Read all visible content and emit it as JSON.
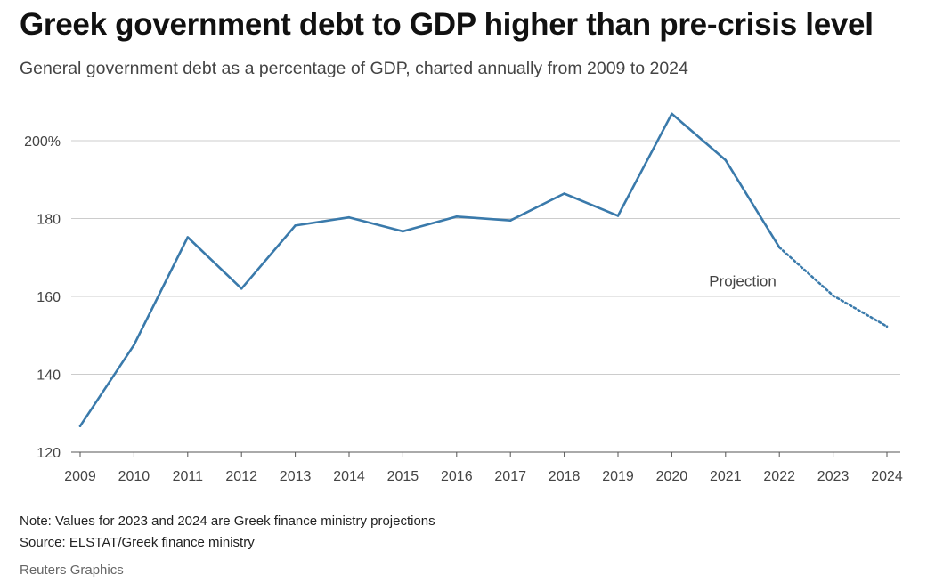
{
  "header": {
    "title": "Greek government debt to GDP higher than pre-crisis level",
    "subtitle": "General government debt as a percentage of GDP, charted annually from 2009 to 2024"
  },
  "footer": {
    "note": "Note: Values for 2023 and 2024 are Greek finance ministry projections",
    "source": "Source: ELSTAT/Greek finance ministry",
    "credit": "Reuters Graphics"
  },
  "chart_data": {
    "type": "line",
    "title": "Greek government debt to GDP higher than pre-crisis level",
    "subtitle": "General government debt as a percentage of GDP, charted annually from 2009 to 2024",
    "xlabel": "",
    "ylabel": "",
    "x": [
      "2009",
      "2010",
      "2011",
      "2012",
      "2013",
      "2014",
      "2015",
      "2016",
      "2017",
      "2018",
      "2019",
      "2020",
      "2021",
      "2022",
      "2023",
      "2024"
    ],
    "series": [
      {
        "values": [
          126.7,
          147.5,
          175.2,
          162.0,
          178.2,
          180.3,
          176.7,
          180.5,
          179.5,
          186.4,
          180.7,
          206.9,
          195.0,
          172.6,
          160.2,
          152.3
        ],
        "projection_from": "2022",
        "color": "#3a7aab"
      }
    ],
    "y_ticks": [
      120,
      140,
      160,
      180,
      200
    ],
    "y_tick_labels": [
      "120",
      "140",
      "160",
      "180",
      "200%"
    ],
    "ylim": [
      120,
      210
    ],
    "grid": "horizontal",
    "annotations": [
      {
        "text": "Projection",
        "x": "2022",
        "y": 164
      }
    ],
    "colors": {
      "line": "#3a7aab",
      "grid": "#cccccc",
      "axis": "#555555"
    }
  }
}
